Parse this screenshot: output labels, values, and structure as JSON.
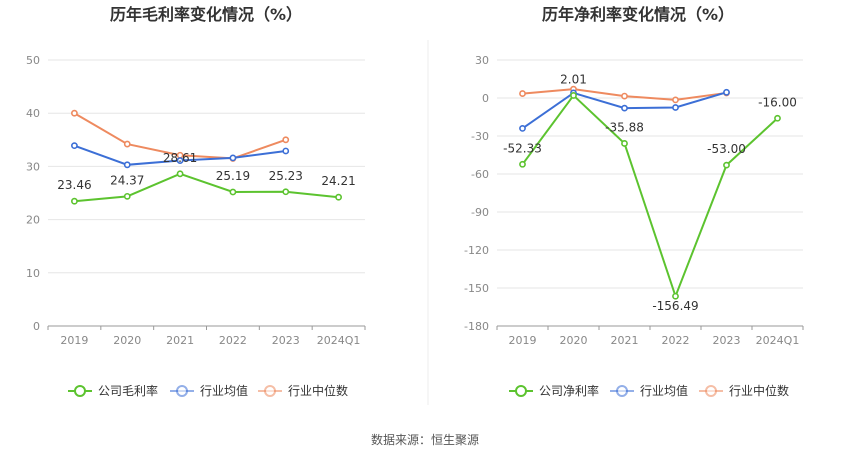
{
  "colors": {
    "company": "#5cc32f",
    "industry_avg": "#3c6fd6",
    "industry_median": "#ee8a5f"
  },
  "source": "数据来源：恒生聚源",
  "chart_data": [
    {
      "type": "line",
      "title": "历年毛利率变化情况（%）",
      "categories": [
        "2019",
        "2020",
        "2021",
        "2022",
        "2023",
        "2024Q1"
      ],
      "yticks": [
        0,
        10,
        20,
        30,
        40,
        50
      ],
      "ylim": [
        0,
        50
      ],
      "grid": true,
      "legend": "bottom",
      "series": [
        {
          "name": "公司毛利率",
          "values": [
            23.46,
            24.37,
            28.61,
            25.19,
            25.23,
            24.21
          ],
          "labels": [
            "23.46",
            "24.37",
            "28.61",
            "25.19",
            "25.23",
            "24.21"
          ]
        },
        {
          "name": "行业均值",
          "values": [
            33.9,
            30.3,
            31.1,
            31.6,
            32.9,
            null
          ]
        },
        {
          "name": "行业中位数",
          "values": [
            40.0,
            34.2,
            32.1,
            31.5,
            35.0,
            null
          ]
        }
      ]
    },
    {
      "type": "line",
      "title": "历年净利率变化情况（%）",
      "categories": [
        "2019",
        "2020",
        "2021",
        "2022",
        "2023",
        "2024Q1"
      ],
      "yticks": [
        30,
        0,
        -30,
        -60,
        -90,
        -120,
        -150,
        -180
      ],
      "ylim": [
        -180,
        30
      ],
      "grid": true,
      "legend": "bottom",
      "series": [
        {
          "name": "公司净利率",
          "values": [
            -52.33,
            2.01,
            -35.88,
            -156.49,
            -53.0,
            -16.0
          ],
          "labels": [
            "-52.33",
            "2.01",
            "-35.88",
            "-156.49",
            "-53.00",
            "-16.00"
          ]
        },
        {
          "name": "行业均值",
          "values": [
            -24.0,
            4.0,
            -8.0,
            -7.5,
            4.5,
            null
          ]
        },
        {
          "name": "行业中位数",
          "values": [
            3.5,
            7.0,
            1.5,
            -1.5,
            4.0,
            null
          ]
        }
      ]
    }
  ]
}
